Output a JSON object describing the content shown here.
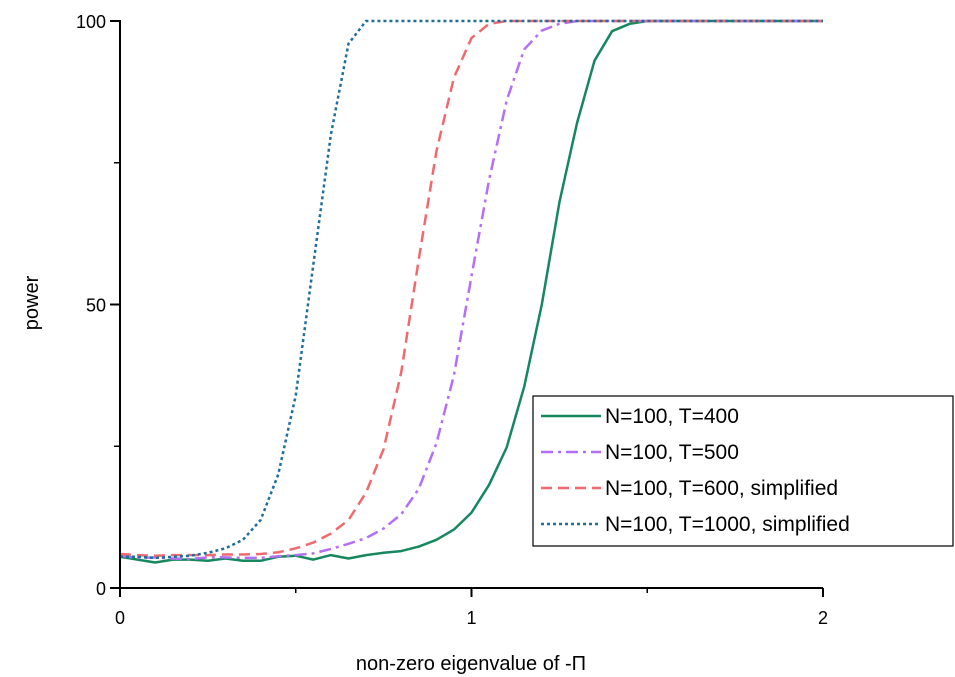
{
  "chart_data": {
    "type": "line",
    "title": "",
    "xlabel": "non-zero eigenvalue of -Π",
    "ylabel": "power",
    "xlim": [
      0,
      2
    ],
    "ylim": [
      0,
      100
    ],
    "x_ticks": [
      "0",
      "1",
      "2"
    ],
    "y_ticks": [
      "0",
      "50",
      "100"
    ],
    "grid": false,
    "legend_position": "bottom-right",
    "series": [
      {
        "name": "N=100, T=400",
        "color": "#17875e",
        "dash": "solid",
        "x": [
          0,
          0.05,
          0.1,
          0.15,
          0.2,
          0.25,
          0.3,
          0.35,
          0.4,
          0.45,
          0.5,
          0.55,
          0.6,
          0.65,
          0.7,
          0.75,
          0.8,
          0.85,
          0.9,
          0.95,
          1.0,
          1.05,
          1.1,
          1.15,
          1.2,
          1.25,
          1.3,
          1.35,
          1.4,
          1.45,
          1.5,
          2.0
        ],
        "y": [
          5.5,
          5,
          4.5,
          5,
          5,
          4.8,
          5.2,
          4.8,
          4.8,
          5.5,
          5.7,
          5.0,
          5.8,
          5.2,
          5.8,
          6.2,
          6.5,
          7.3,
          8.5,
          10.3,
          13.3,
          18.2,
          24.8,
          35.5,
          50,
          68,
          82,
          93,
          98.2,
          99.5,
          100,
          100
        ]
      },
      {
        "name": "N=100, T=500",
        "color": "#b36ff5",
        "dash": "dashdot",
        "x": [
          0,
          0.05,
          0.1,
          0.15,
          0.2,
          0.25,
          0.3,
          0.35,
          0.4,
          0.45,
          0.5,
          0.55,
          0.6,
          0.65,
          0.7,
          0.75,
          0.8,
          0.85,
          0.9,
          0.95,
          1.0,
          1.05,
          1.1,
          1.15,
          1.2,
          1.25,
          1.3,
          2.0
        ],
        "y": [
          5.7,
          5.3,
          5.4,
          5.2,
          5.1,
          5.4,
          5.4,
          5.3,
          5.3,
          5.6,
          5.8,
          6.1,
          6.9,
          7.8,
          8.8,
          10.5,
          13.0,
          17.5,
          25.5,
          37.5,
          55.0,
          72.0,
          86.0,
          95.0,
          98.3,
          99.5,
          100,
          100
        ]
      },
      {
        "name": "N=100, T=600, simplified",
        "color": "#f0696e",
        "dash": "dashed",
        "x": [
          0,
          0.05,
          0.1,
          0.15,
          0.2,
          0.25,
          0.3,
          0.35,
          0.4,
          0.45,
          0.5,
          0.55,
          0.6,
          0.65,
          0.7,
          0.75,
          0.8,
          0.85,
          0.9,
          0.95,
          1.0,
          1.05,
          1.1,
          2.0
        ],
        "y": [
          6.0,
          5.8,
          5.7,
          5.8,
          5.8,
          5.8,
          5.9,
          5.9,
          6.0,
          6.3,
          7.0,
          8.0,
          9.6,
          12.0,
          16.8,
          24.5,
          38.0,
          58.0,
          77.0,
          90.0,
          97.0,
          99.5,
          100,
          100
        ]
      },
      {
        "name": "N=100, T=1000, simplified",
        "color": "#1f6e9c",
        "dash": "dotted",
        "x": [
          0,
          0.05,
          0.1,
          0.15,
          0.2,
          0.25,
          0.3,
          0.35,
          0.4,
          0.45,
          0.5,
          0.55,
          0.6,
          0.65,
          0.7,
          0.75,
          2.0
        ],
        "y": [
          5.5,
          5.5,
          5.3,
          5.5,
          5.7,
          6.2,
          7.0,
          8.5,
          12.0,
          20.0,
          34.0,
          57.0,
          80.0,
          96.0,
          100,
          100,
          100
        ]
      }
    ]
  }
}
